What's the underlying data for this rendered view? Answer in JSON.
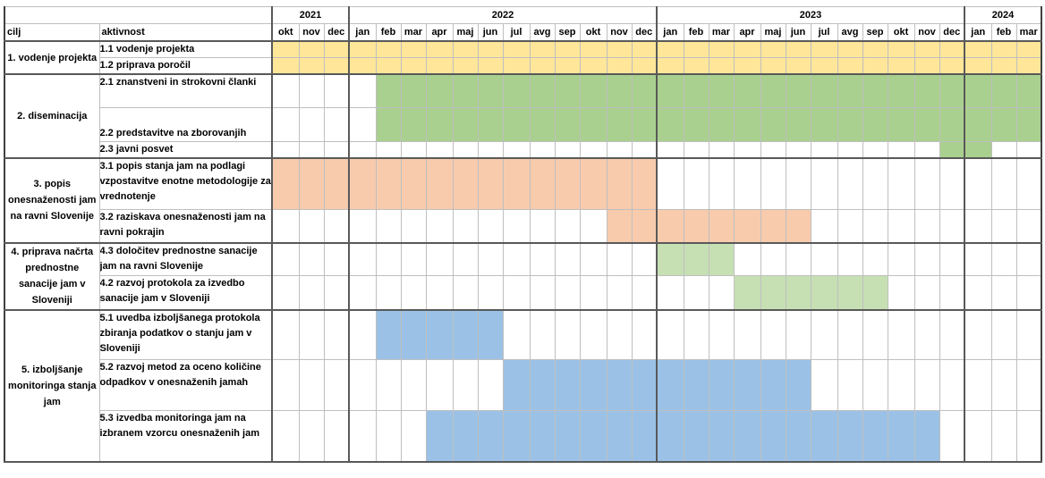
{
  "header": {
    "years": [
      {
        "label": "2021",
        "span": 3
      },
      {
        "label": "2022",
        "span": 12
      },
      {
        "label": "2023",
        "span": 12
      },
      {
        "label": "2024",
        "span": 3
      }
    ],
    "col_goal": "cilj",
    "col_activity": "aktivnost",
    "months": [
      "okt",
      "nov",
      "dec",
      "jan",
      "feb",
      "mar",
      "apr",
      "maj",
      "jun",
      "jul",
      "avg",
      "sep",
      "okt",
      "nov",
      "dec",
      "jan",
      "feb",
      "mar",
      "apr",
      "maj",
      "jun",
      "jul",
      "avg",
      "sep",
      "okt",
      "nov",
      "dec",
      "jan",
      "feb",
      "mar"
    ]
  },
  "colors": {
    "management": "#ffe699",
    "dissemination": "#a9d08e",
    "inventory": "#f8cbad",
    "remediation": "#c6e0b4",
    "monitoring": "#9bc2e6"
  },
  "goals": [
    {
      "label": "1. vodenje projekta",
      "activities": [
        {
          "label": "1.1 vodenje projekta",
          "color": "#ffe699",
          "start": 0,
          "end": 29
        },
        {
          "label": "1.2 priprava poročil",
          "color": "#ffe699",
          "start": 0,
          "end": 29
        }
      ]
    },
    {
      "label": "2. diseminacija",
      "activities": [
        {
          "label": "2.1 znanstveni in strokovni članki",
          "color": "#a9d08e",
          "start": 4,
          "end": 29
        },
        {
          "label": "2.2 predstavitve na zborovanjih",
          "color": "#a9d08e",
          "start": 4,
          "end": 29
        },
        {
          "label": "2.3 javni posvet",
          "color": "#a9d08e",
          "start": 26,
          "end": 27
        }
      ]
    },
    {
      "label": "3. popis onesnaženosti jam na ravni Slovenije",
      "activities": [
        {
          "label": "3.1 popis stanja jam na podlagi vzpostavitve enotne metodologije za vrednotenje",
          "color": "#f8cbad",
          "start": 0,
          "end": 14
        },
        {
          "label": "3.2 raziskava onesnaženosti jam na ravni pokrajin",
          "color": "#f8cbad",
          "start": 13,
          "end": 20
        }
      ]
    },
    {
      "label": "4. priprava načrta prednostne sanacije jam v Sloveniji",
      "activities": [
        {
          "label": "4.3 določitev prednostne sanacije jam na ravni Slovenije",
          "color": "#c6e0b4",
          "start": 15,
          "end": 17
        },
        {
          "label": "4.2 razvoj protokola za izvedbo sanacije jam v Sloveniji",
          "color": "#c6e0b4",
          "start": 18,
          "end": 23
        }
      ]
    },
    {
      "label": "5. izboljšanje monitoringa stanja jam",
      "activities": [
        {
          "label": "5.1 uvedba izboljšanega protokola zbiranja podatkov o stanju jam v Sloveniji",
          "color": "#9bc2e6",
          "start": 4,
          "end": 8
        },
        {
          "label": "5.2 razvoj metod za oceno količine odpadkov v onesnaženih jamah",
          "color": "#9bc2e6",
          "start": 9,
          "end": 20
        },
        {
          "label": "5.3 izvedba monitoringa jam na izbranem vzorcu onesnaženih jam",
          "color": "#9bc2e6",
          "start": 6,
          "end": 25
        }
      ]
    }
  ]
}
